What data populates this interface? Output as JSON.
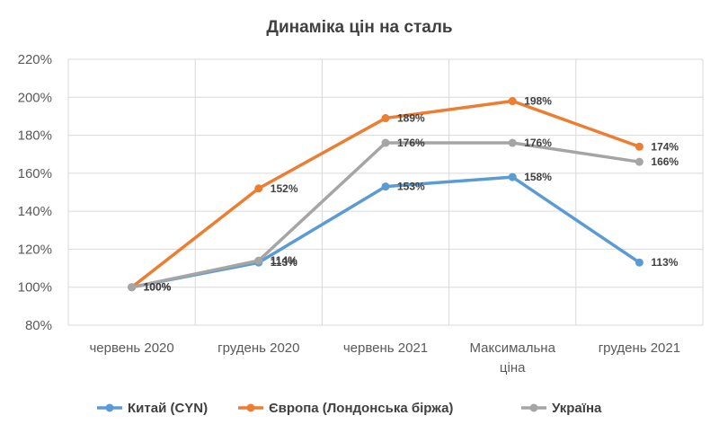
{
  "chart_data": {
    "type": "line",
    "title": "Динаміка цін на сталь",
    "categories": [
      "червень 2020",
      "грудень 2020",
      "червень 2021",
      "Максимальна ціна",
      "грудень 2021"
    ],
    "y_tick_labels": [
      "80%",
      "100%",
      "120%",
      "140%",
      "160%",
      "180%",
      "200%",
      "220%"
    ],
    "ylim": [
      80,
      220
    ],
    "y_unit": "%",
    "grid": true,
    "legend_position": "bottom",
    "series": [
      {
        "name": "Китай (CYN)",
        "color": "#5b9bd5",
        "values": [
          100,
          113,
          153,
          158,
          113
        ],
        "labels": [
          "100%",
          "113%",
          "153%",
          "158%",
          "113%"
        ]
      },
      {
        "name": "Європа (Лондонська біржа)",
        "color": "#ed7d31",
        "values": [
          100,
          152,
          189,
          198,
          174
        ],
        "labels": [
          "100%",
          "152%",
          "189%",
          "198%",
          "174%"
        ]
      },
      {
        "name": "Україна",
        "color": "#a5a5a5",
        "values": [
          100,
          114,
          176,
          176,
          166
        ],
        "labels": [
          "100%",
          "114%",
          "176%",
          "176%",
          "166%"
        ]
      }
    ]
  }
}
